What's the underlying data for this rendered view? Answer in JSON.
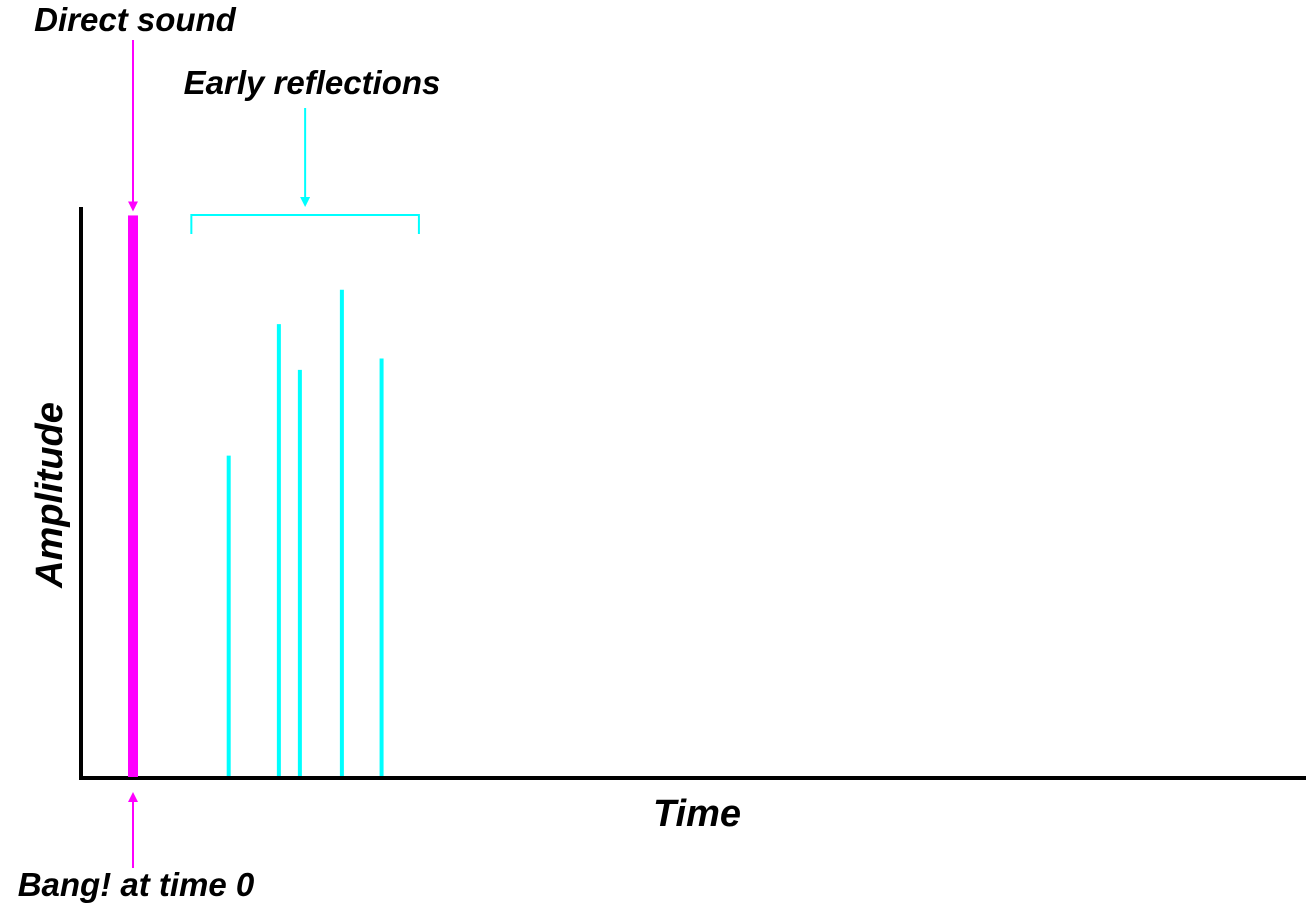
{
  "chart_data": {
    "type": "bar",
    "xlabel": "Time",
    "ylabel": "Amplitude",
    "xlim": [
      0,
      100
    ],
    "ylim": [
      0,
      100
    ],
    "grid": false,
    "direct_sound": {
      "label": "Direct sound",
      "time": 0,
      "amplitude": 98,
      "color": "#ff00ff"
    },
    "early_reflections": {
      "label": "Early reflections",
      "color": "#00ffff",
      "times": [
        8.2,
        12.5,
        14.3,
        17.9,
        21.3
      ],
      "amplitudes": [
        56,
        79,
        71,
        85,
        73
      ],
      "bracket_range": [
        5,
        24.5
      ]
    },
    "origin_annotation": {
      "label": "Bang! at time 0",
      "color": "#ff00ff"
    },
    "colors": {
      "axis": "#000000",
      "direct": "#ff00ff",
      "reflections": "#00ffff"
    }
  }
}
